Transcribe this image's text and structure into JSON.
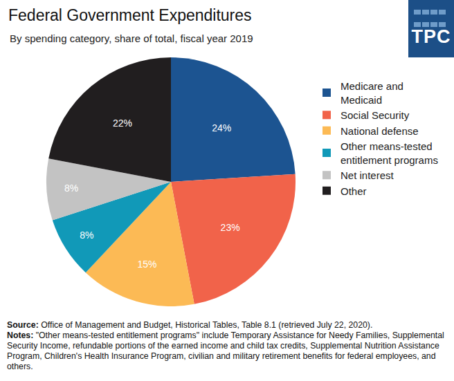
{
  "chart_data": {
    "type": "pie",
    "title": "Federal Government Expenditures",
    "subtitle": "By spending category, share of total, fiscal year 2019",
    "logo": "TPC",
    "categories": [
      "Medicare and Medicaid",
      "Social Security",
      "National defense",
      "Other means-tested entitlement programs",
      "Net interest",
      "Other"
    ],
    "values": [
      24,
      23,
      15,
      8,
      8,
      22
    ],
    "value_labels": [
      "24%",
      "23%",
      "15%",
      "8%",
      "8%",
      "22%"
    ],
    "colors": [
      "#1c5491",
      "#f1634a",
      "#fcba55",
      "#1199b8",
      "#c3c3c3",
      "#211e1f"
    ],
    "data_labels": true,
    "legend": "right",
    "annotations": [
      {
        "label": "Source:",
        "text": "Office of Management and Budget, Historical Tables, Table 8.1 (retrieved July 22, 2020)."
      },
      {
        "label": "Notes:",
        "text": "\"Other means-tested entitlement programs\" include Temporary Assistance for Needy Families, Supplemental Security Income, refundable portions of the earned income and child tax credits, Supplemental Nutrition Assistance Program, Children's Health Insurance Program, civilian and military retirement benefits for federal employees, and others."
      }
    ]
  }
}
